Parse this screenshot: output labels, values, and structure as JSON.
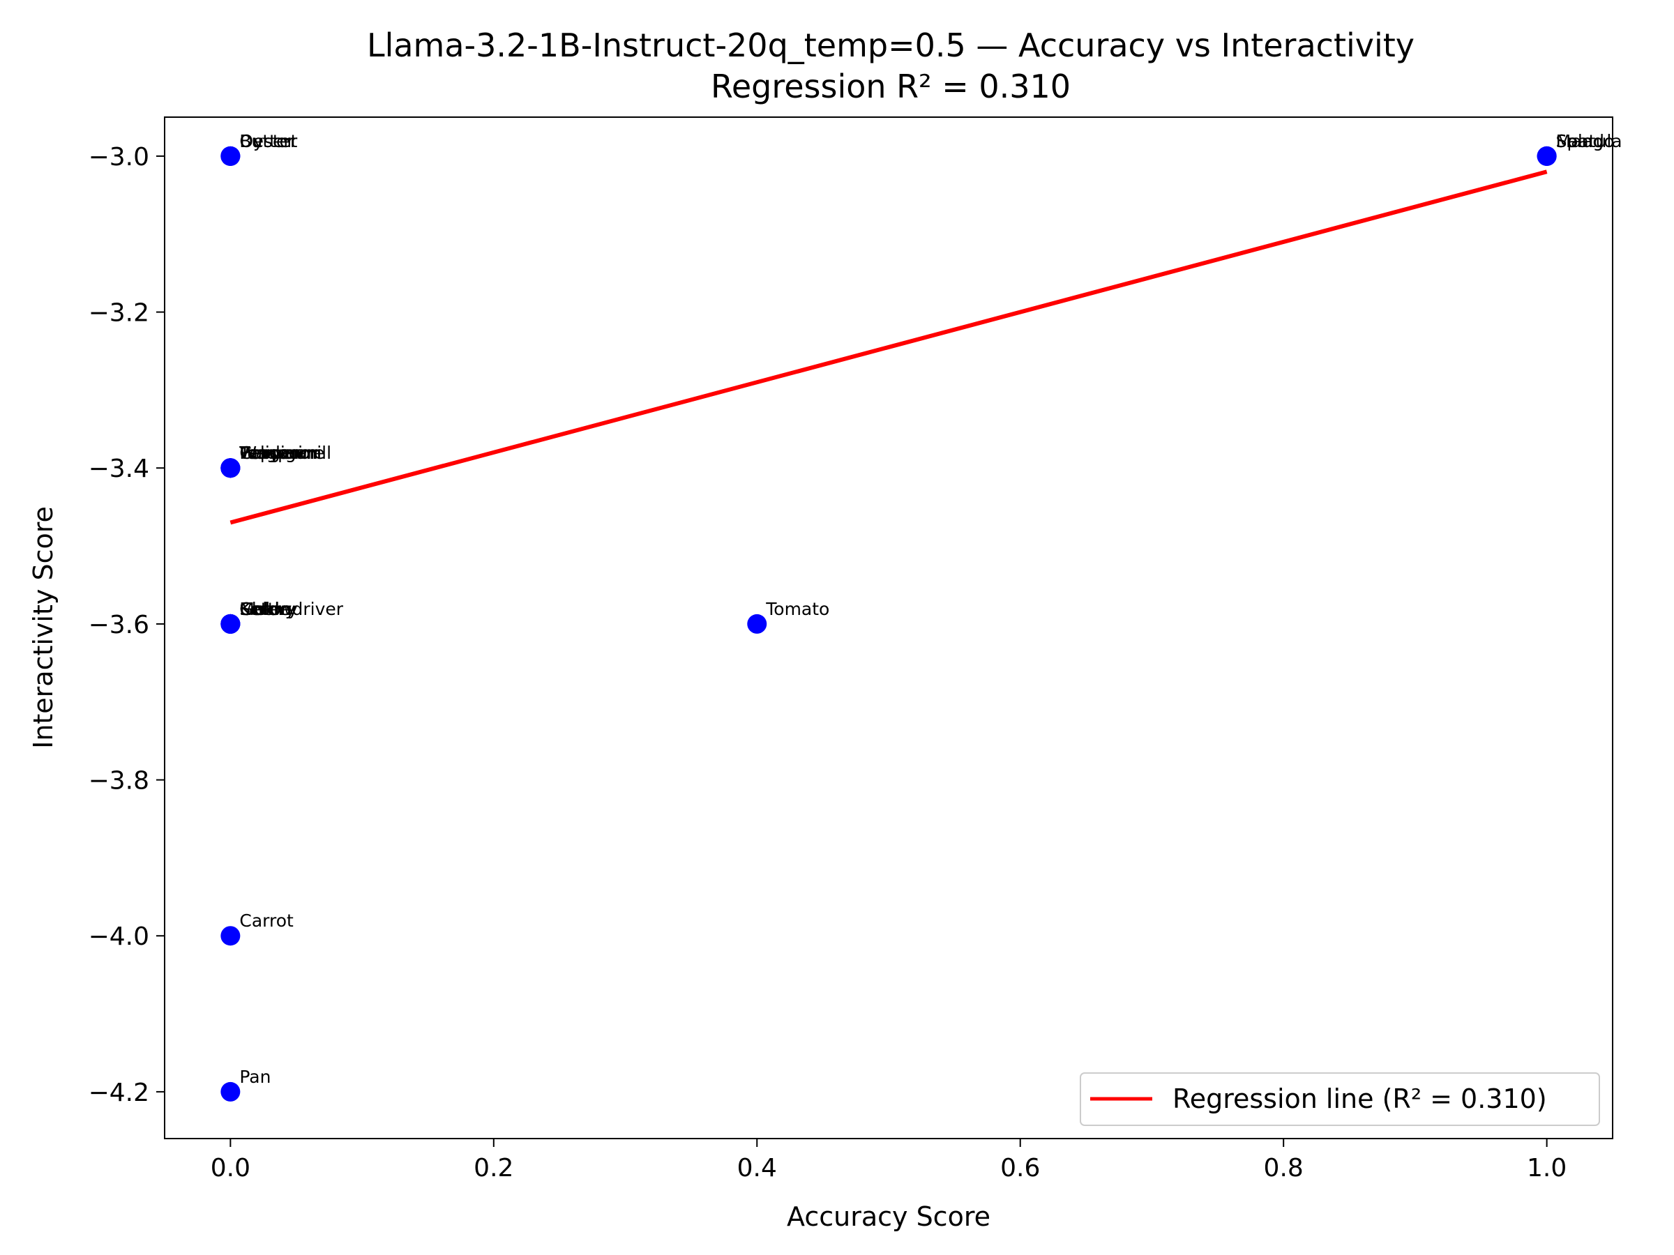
{
  "chart_data": {
    "type": "scatter",
    "title": "Llama-3.2-1B-Instruct-20q_temp=0.5 — Accuracy vs Interactivity",
    "subtitle": "Regression R² = 0.310",
    "xlabel": "Accuracy Score",
    "ylabel": "Interactivity Score",
    "xlim": [
      -0.05,
      1.05
    ],
    "ylim": [
      -4.26,
      -2.95
    ],
    "xticks": [
      0.0,
      0.2,
      0.4,
      0.6,
      0.8,
      1.0
    ],
    "xtick_labels": [
      "0.0",
      "0.2",
      "0.4",
      "0.6",
      "0.8",
      "1.0"
    ],
    "yticks": [
      -3.0,
      -3.2,
      -3.4,
      -3.6,
      -3.8,
      -4.0,
      -4.2
    ],
    "ytick_labels": [
      "−3.0",
      "−3.2",
      "−3.4",
      "−3.6",
      "−3.8",
      "−4.0",
      "−4.2"
    ],
    "grid": false,
    "point_color": "#0000ff",
    "line_color": "#ff0000",
    "points": [
      {
        "x": 0.0,
        "y": -3.0,
        "label": "Butter"
      },
      {
        "x": 0.0,
        "y": -3.0,
        "label": "Oyster"
      },
      {
        "x": 0.0,
        "y": -3.0,
        "label": "Desert"
      },
      {
        "x": 1.0,
        "y": -3.0,
        "label": "Spatula"
      },
      {
        "x": 1.0,
        "y": -3.0,
        "label": "Mango"
      },
      {
        "x": 1.0,
        "y": -3.0,
        "label": "Salad"
      },
      {
        "x": 0.0,
        "y": -3.4,
        "label": "Wagon"
      },
      {
        "x": 0.0,
        "y": -3.4,
        "label": "Peppermill"
      },
      {
        "x": 0.0,
        "y": -3.4,
        "label": "Tangerine"
      },
      {
        "x": 0.0,
        "y": -3.4,
        "label": "Teaspoon"
      },
      {
        "x": 0.0,
        "y": -3.4,
        "label": "Pelican"
      },
      {
        "x": 0.0,
        "y": -3.4,
        "label": "Cardigan"
      },
      {
        "x": 0.0,
        "y": -3.6,
        "label": "Celery"
      },
      {
        "x": 0.0,
        "y": -3.6,
        "label": "Melon"
      },
      {
        "x": 0.0,
        "y": -3.6,
        "label": "Gold"
      },
      {
        "x": 0.0,
        "y": -3.6,
        "label": "Kettle"
      },
      {
        "x": 0.0,
        "y": -3.6,
        "label": "Cherry"
      },
      {
        "x": 0.0,
        "y": -3.6,
        "label": "Screwdriver"
      },
      {
        "x": 0.4,
        "y": -3.6,
        "label": "Tomato"
      },
      {
        "x": 0.0,
        "y": -4.0,
        "label": "Carrot"
      },
      {
        "x": 0.0,
        "y": -4.2,
        "label": "Pan"
      }
    ],
    "regression": {
      "x": [
        0.0,
        1.0
      ],
      "y": [
        -3.47,
        -3.02
      ],
      "r2": 0.31
    },
    "legend": {
      "placement": "lower-right",
      "entries": [
        {
          "label": "Regression line (R² = 0.310)",
          "color": "#ff0000"
        }
      ]
    }
  }
}
